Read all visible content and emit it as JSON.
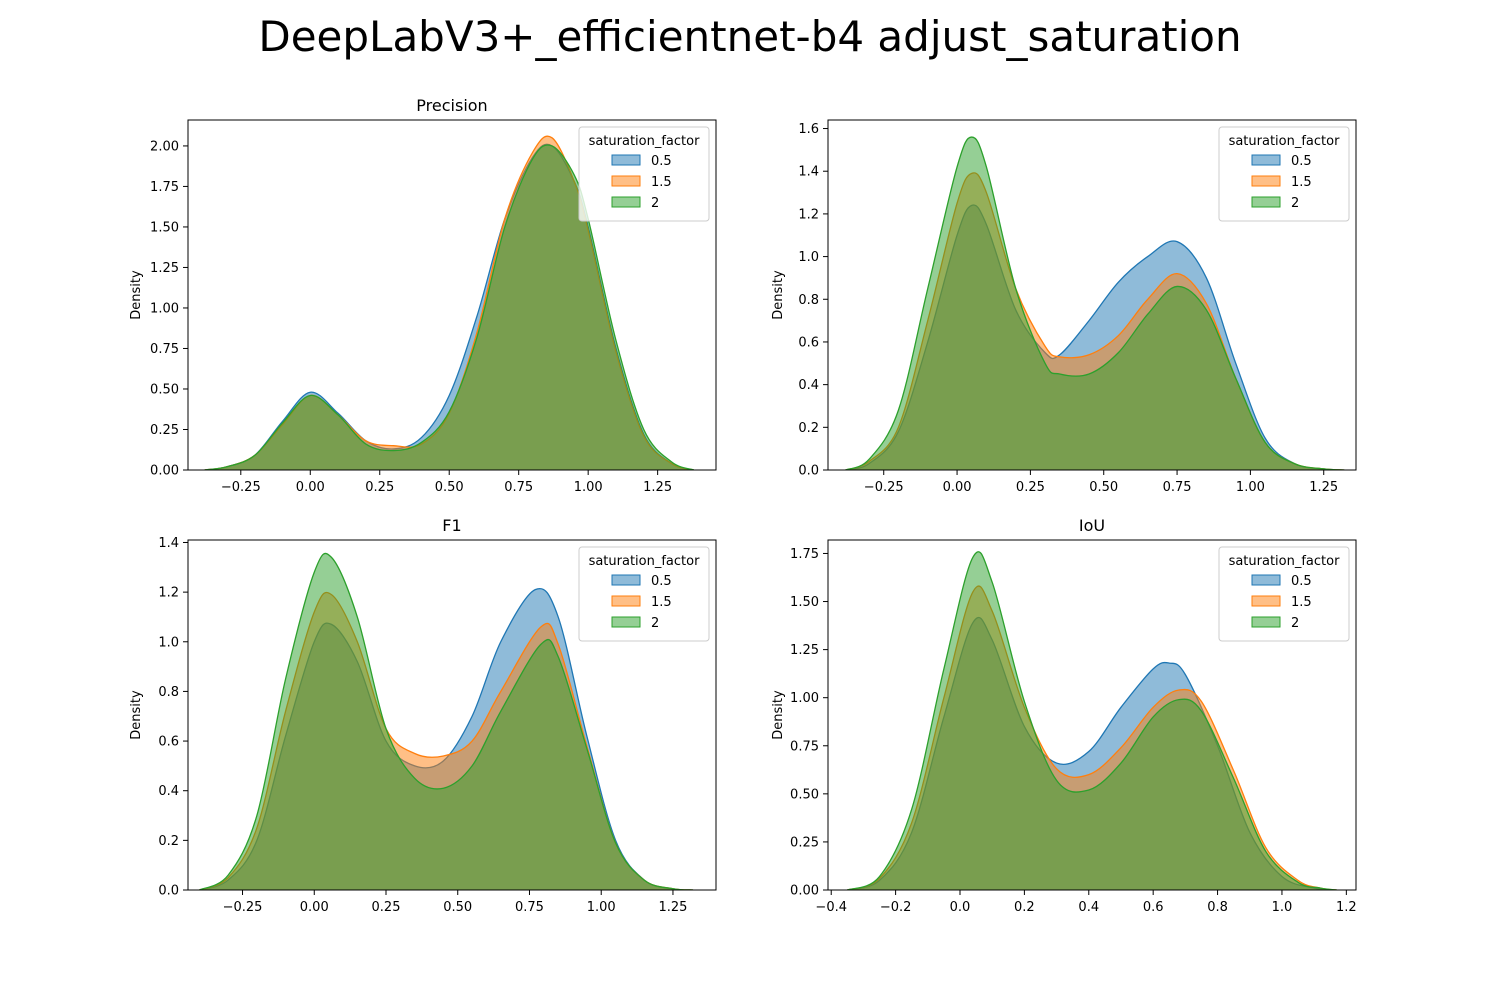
{
  "figure_title": "DeepLabV3+_efficientnet-b4 adjust_saturation",
  "colors": {
    "0.5": "#1f77b4",
    "1.5": "#ff7f0e",
    "2": "#2ca02c"
  },
  "chart_data": [
    {
      "type": "area",
      "title": "Precision",
      "xlabel": "",
      "ylabel": "Density",
      "xlim": [
        -0.44,
        1.46
      ],
      "ylim": [
        0,
        2.16
      ],
      "xticks": [
        -0.25,
        0.0,
        0.25,
        0.5,
        0.75,
        1.0,
        1.25
      ],
      "xtick_labels": [
        "−0.25",
        "0.00",
        "0.25",
        "0.50",
        "0.75",
        "1.00",
        "1.25"
      ],
      "yticks": [
        0,
        0.25,
        0.5,
        0.75,
        1.0,
        1.25,
        1.5,
        1.75,
        2.0
      ],
      "ytick_labels": [
        "0.00",
        "0.25",
        "0.50",
        "0.75",
        "1.00",
        "1.25",
        "1.50",
        "1.75",
        "2.00"
      ],
      "legend": {
        "title": "saturation_factor",
        "placement": "top-right"
      },
      "series": [
        {
          "name": "0.5",
          "color": "#1f77b4",
          "x": [
            -0.38,
            -0.3,
            -0.2,
            -0.1,
            0.0,
            0.1,
            0.2,
            0.3,
            0.4,
            0.5,
            0.6,
            0.7,
            0.8,
            0.87,
            0.95,
            1.0,
            1.1,
            1.2,
            1.3,
            1.38
          ],
          "y": [
            0.0,
            0.02,
            0.09,
            0.3,
            0.48,
            0.35,
            0.18,
            0.13,
            0.2,
            0.46,
            0.95,
            1.55,
            1.93,
            2.0,
            1.78,
            1.5,
            0.75,
            0.22,
            0.04,
            0.0
          ]
        },
        {
          "name": "1.5",
          "color": "#ff7f0e",
          "x": [
            -0.38,
            -0.3,
            -0.2,
            -0.1,
            0.0,
            0.1,
            0.2,
            0.3,
            0.4,
            0.5,
            0.6,
            0.7,
            0.8,
            0.87,
            0.95,
            1.0,
            1.1,
            1.2,
            1.3,
            1.38
          ],
          "y": [
            0.0,
            0.02,
            0.09,
            0.28,
            0.46,
            0.34,
            0.18,
            0.15,
            0.16,
            0.35,
            0.85,
            1.55,
            1.96,
            2.05,
            1.78,
            1.48,
            0.73,
            0.21,
            0.04,
            0.0
          ]
        },
        {
          "name": "2",
          "color": "#2ca02c",
          "x": [
            -0.38,
            -0.3,
            -0.2,
            -0.1,
            0.0,
            0.1,
            0.2,
            0.3,
            0.4,
            0.5,
            0.6,
            0.7,
            0.8,
            0.87,
            0.95,
            1.0,
            1.1,
            1.2,
            1.3,
            1.38
          ],
          "y": [
            0.0,
            0.02,
            0.09,
            0.29,
            0.46,
            0.34,
            0.16,
            0.12,
            0.17,
            0.36,
            0.82,
            1.5,
            1.92,
            2.0,
            1.82,
            1.55,
            0.8,
            0.25,
            0.05,
            0.0
          ]
        }
      ]
    },
    {
      "type": "area",
      "title": "",
      "xlabel": "",
      "ylabel": "Density",
      "xlim": [
        -0.44,
        1.36
      ],
      "ylim": [
        0,
        1.64
      ],
      "xticks": [
        -0.25,
        0.0,
        0.25,
        0.5,
        0.75,
        1.0,
        1.25
      ],
      "xtick_labels": [
        "−0.25",
        "0.00",
        "0.25",
        "0.50",
        "0.75",
        "1.00",
        "1.25"
      ],
      "yticks": [
        0,
        0.2,
        0.4,
        0.6,
        0.8,
        1.0,
        1.2,
        1.4,
        1.6
      ],
      "ytick_labels": [
        "0.0",
        "0.2",
        "0.4",
        "0.6",
        "0.8",
        "1.0",
        "1.2",
        "1.4",
        "1.6"
      ],
      "legend": {
        "title": "saturation_factor",
        "placement": "top-right"
      },
      "series": [
        {
          "name": "0.5",
          "color": "#1f77b4",
          "x": [
            -0.38,
            -0.3,
            -0.2,
            -0.1,
            0.0,
            0.05,
            0.1,
            0.2,
            0.3,
            0.35,
            0.45,
            0.55,
            0.65,
            0.75,
            0.85,
            0.95,
            1.05,
            1.15,
            1.25,
            1.32
          ],
          "y": [
            0.0,
            0.03,
            0.18,
            0.6,
            1.1,
            1.24,
            1.15,
            0.75,
            0.55,
            0.54,
            0.7,
            0.88,
            1.0,
            1.07,
            0.9,
            0.5,
            0.15,
            0.03,
            0.005,
            0.0
          ]
        },
        {
          "name": "1.5",
          "color": "#ff7f0e",
          "x": [
            -0.38,
            -0.3,
            -0.2,
            -0.1,
            0.0,
            0.05,
            0.1,
            0.2,
            0.3,
            0.35,
            0.45,
            0.55,
            0.65,
            0.75,
            0.85,
            0.95,
            1.05,
            1.15,
            1.25,
            1.32
          ],
          "y": [
            0.0,
            0.04,
            0.2,
            0.7,
            1.25,
            1.39,
            1.3,
            0.85,
            0.58,
            0.53,
            0.54,
            0.63,
            0.8,
            0.92,
            0.78,
            0.43,
            0.13,
            0.03,
            0.005,
            0.0
          ]
        },
        {
          "name": "2",
          "color": "#2ca02c",
          "x": [
            -0.38,
            -0.3,
            -0.2,
            -0.1,
            0.0,
            0.05,
            0.1,
            0.2,
            0.3,
            0.35,
            0.45,
            0.55,
            0.65,
            0.75,
            0.85,
            0.95,
            1.05,
            1.15,
            1.25,
            1.32
          ],
          "y": [
            0.0,
            0.05,
            0.28,
            0.85,
            1.42,
            1.56,
            1.42,
            0.85,
            0.5,
            0.45,
            0.45,
            0.55,
            0.73,
            0.86,
            0.75,
            0.43,
            0.13,
            0.03,
            0.005,
            0.0
          ]
        }
      ]
    },
    {
      "type": "area",
      "title": "F1",
      "xlabel": "",
      "ylabel": "Density",
      "xlim": [
        -0.44,
        1.4
      ],
      "ylim": [
        0,
        1.41
      ],
      "xticks": [
        -0.25,
        0.0,
        0.25,
        0.5,
        0.75,
        1.0,
        1.25
      ],
      "xtick_labels": [
        "−0.25",
        "0.00",
        "0.25",
        "0.50",
        "0.75",
        "1.00",
        "1.25"
      ],
      "yticks": [
        0,
        0.2,
        0.4,
        0.6,
        0.8,
        1.0,
        1.2,
        1.4
      ],
      "ytick_labels": [
        "0.0",
        "0.2",
        "0.4",
        "0.6",
        "0.8",
        "1.0",
        "1.2",
        "1.4"
      ],
      "legend": {
        "title": "saturation_factor",
        "placement": "top-right"
      },
      "series": [
        {
          "name": "0.5",
          "color": "#1f77b4",
          "x": [
            -0.4,
            -0.3,
            -0.2,
            -0.1,
            0.0,
            0.06,
            0.15,
            0.25,
            0.35,
            0.45,
            0.55,
            0.65,
            0.77,
            0.85,
            0.95,
            1.05,
            1.15,
            1.25,
            1.32
          ],
          "y": [
            0.0,
            0.04,
            0.2,
            0.62,
            1.0,
            1.07,
            0.92,
            0.6,
            0.5,
            0.52,
            0.7,
            1.0,
            1.21,
            1.1,
            0.62,
            0.2,
            0.04,
            0.005,
            0.0
          ]
        },
        {
          "name": "1.5",
          "color": "#ff7f0e",
          "x": [
            -0.4,
            -0.3,
            -0.2,
            -0.1,
            0.0,
            0.06,
            0.15,
            0.25,
            0.35,
            0.45,
            0.55,
            0.65,
            0.79,
            0.85,
            0.95,
            1.05,
            1.15,
            1.25,
            1.32
          ],
          "y": [
            0.0,
            0.05,
            0.25,
            0.72,
            1.12,
            1.19,
            1.0,
            0.65,
            0.55,
            0.54,
            0.6,
            0.8,
            1.06,
            0.99,
            0.58,
            0.19,
            0.04,
            0.005,
            0.0
          ]
        },
        {
          "name": "2",
          "color": "#2ca02c",
          "x": [
            -0.4,
            -0.3,
            -0.2,
            -0.1,
            0.0,
            0.06,
            0.15,
            0.25,
            0.35,
            0.45,
            0.55,
            0.65,
            0.79,
            0.85,
            0.95,
            1.05,
            1.15,
            1.25,
            1.32
          ],
          "y": [
            0.0,
            0.06,
            0.3,
            0.85,
            1.28,
            1.34,
            1.1,
            0.65,
            0.45,
            0.41,
            0.5,
            0.72,
            0.99,
            0.94,
            0.57,
            0.19,
            0.04,
            0.005,
            0.0
          ]
        }
      ]
    },
    {
      "type": "area",
      "title": "IoU",
      "xlabel": "",
      "ylabel": "Density",
      "xlim": [
        -0.41,
        1.23
      ],
      "ylim": [
        0,
        1.82
      ],
      "xticks": [
        -0.4,
        -0.2,
        0.0,
        0.2,
        0.4,
        0.6,
        0.8,
        1.0,
        1.2
      ],
      "xtick_labels": [
        "−0.4",
        "−0.2",
        "0.0",
        "0.2",
        "0.4",
        "0.6",
        "0.8",
        "1.0",
        "1.2"
      ],
      "yticks": [
        0,
        0.25,
        0.5,
        0.75,
        1.0,
        1.25,
        1.5,
        1.75
      ],
      "ytick_labels": [
        "0.00",
        "0.25",
        "0.50",
        "0.75",
        "1.00",
        "1.25",
        "1.50",
        "1.75"
      ],
      "legend": {
        "title": "saturation_factor",
        "placement": "top-right"
      },
      "series": [
        {
          "name": "0.5",
          "color": "#1f77b4",
          "x": [
            -0.35,
            -0.25,
            -0.15,
            -0.05,
            0.04,
            0.1,
            0.2,
            0.3,
            0.4,
            0.5,
            0.6,
            0.65,
            0.7,
            0.8,
            0.9,
            1.0,
            1.1,
            1.17
          ],
          "y": [
            0.0,
            0.05,
            0.3,
            0.9,
            1.39,
            1.3,
            0.85,
            0.66,
            0.72,
            0.95,
            1.15,
            1.18,
            1.12,
            0.75,
            0.3,
            0.07,
            0.01,
            0.0
          ]
        },
        {
          "name": "1.5",
          "color": "#ff7f0e",
          "x": [
            -0.35,
            -0.25,
            -0.15,
            -0.05,
            0.04,
            0.1,
            0.2,
            0.3,
            0.4,
            0.5,
            0.6,
            0.68,
            0.75,
            0.85,
            0.95,
            1.05,
            1.12,
            1.17
          ],
          "y": [
            0.0,
            0.06,
            0.35,
            1.0,
            1.55,
            1.45,
            0.95,
            0.63,
            0.6,
            0.74,
            0.95,
            1.04,
            0.98,
            0.62,
            0.22,
            0.05,
            0.01,
            0.0
          ]
        },
        {
          "name": "2",
          "color": "#2ca02c",
          "x": [
            -0.35,
            -0.25,
            -0.15,
            -0.05,
            0.04,
            0.1,
            0.2,
            0.3,
            0.4,
            0.5,
            0.6,
            0.68,
            0.75,
            0.85,
            0.95,
            1.05,
            1.12,
            1.17
          ],
          "y": [
            0.0,
            0.07,
            0.42,
            1.15,
            1.73,
            1.6,
            0.98,
            0.57,
            0.52,
            0.66,
            0.9,
            0.99,
            0.93,
            0.58,
            0.2,
            0.04,
            0.01,
            0.0
          ]
        }
      ]
    }
  ]
}
